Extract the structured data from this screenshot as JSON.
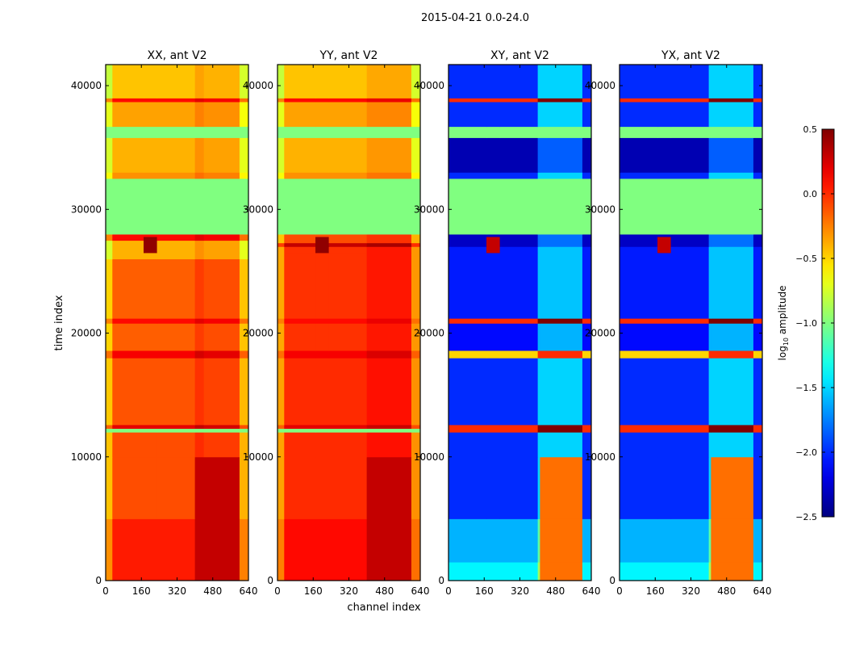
{
  "chart_data": {
    "type": "heatmap",
    "title": "2015-04-21 0.0-24.0",
    "xlabel": "channel index",
    "ylabel": "time index",
    "xlim": [
      0,
      640
    ],
    "ylim": [
      0,
      41700
    ],
    "xticks": [
      "0",
      "160",
      "320",
      "480",
      "640"
    ],
    "xtick_values": [
      0,
      160,
      320,
      480,
      640
    ],
    "yticks": [
      "0",
      "10000",
      "20000",
      "30000",
      "40000"
    ],
    "ytick_values": [
      0,
      10000,
      20000,
      30000,
      40000
    ],
    "colormap": "jet",
    "colorbar": {
      "label_main": "log",
      "label_sub": "10",
      "label_rest": " amplitude",
      "range": [
        -2.5,
        0.5
      ],
      "ticks": [
        "0.5",
        "0.0",
        "−0.5",
        "−1.0",
        "−1.5",
        "−2.0",
        "−2.5"
      ],
      "tick_values": [
        0.5,
        0.0,
        -0.5,
        -1.0,
        -1.5,
        -2.0,
        -2.5
      ]
    },
    "flag_value": -1.0,
    "panels": [
      {
        "title": "XX, ant V2",
        "rows": [
          [
            0,
            5000,
            0.05
          ],
          [
            5000,
            12000,
            -0.1
          ],
          [
            12000,
            12300,
            -1.0
          ],
          [
            12300,
            12600,
            0.2
          ],
          [
            12600,
            18000,
            -0.12
          ],
          [
            18000,
            18600,
            0.15
          ],
          [
            18600,
            20800,
            -0.15
          ],
          [
            20800,
            21200,
            0.1
          ],
          [
            21200,
            26000,
            -0.15
          ],
          [
            26000,
            27500,
            -0.4
          ],
          [
            27500,
            28000,
            0.1
          ],
          [
            28000,
            32500,
            -1.0
          ],
          [
            32500,
            33000,
            -0.3
          ],
          [
            33000,
            35800,
            -0.4
          ],
          [
            35800,
            36700,
            -1.0
          ],
          [
            36700,
            38700,
            -0.35
          ],
          [
            38700,
            39000,
            0.1
          ],
          [
            39000,
            41700,
            -0.45
          ]
        ],
        "column_deltas": [
          [
            0,
            30,
            -0.35
          ],
          [
            30,
            400,
            0
          ],
          [
            400,
            440,
            0.1
          ],
          [
            440,
            600,
            0.05
          ],
          [
            600,
            640,
            -0.3
          ]
        ],
        "overrides": [
          [
            0,
            10000,
            400,
            600,
            0.3
          ],
          [
            26500,
            27800,
            170,
            230,
            0.45
          ]
        ]
      },
      {
        "title": "YY, ant V2",
        "rows": [
          [
            0,
            5000,
            0.1
          ],
          [
            5000,
            12000,
            0.0
          ],
          [
            12000,
            12300,
            -1.0
          ],
          [
            12300,
            12600,
            0.2
          ],
          [
            12600,
            18000,
            0.0
          ],
          [
            18000,
            18600,
            0.15
          ],
          [
            18600,
            20800,
            -0.02
          ],
          [
            20800,
            21200,
            0.1
          ],
          [
            21200,
            27000,
            -0.02
          ],
          [
            27000,
            27300,
            0.3
          ],
          [
            27300,
            28000,
            -0.1
          ],
          [
            28000,
            32500,
            -1.0
          ],
          [
            32500,
            33000,
            -0.3
          ],
          [
            33000,
            35800,
            -0.4
          ],
          [
            35800,
            36700,
            -1.0
          ],
          [
            36700,
            38700,
            -0.35
          ],
          [
            38700,
            39000,
            0.1
          ],
          [
            39000,
            41700,
            -0.45
          ]
        ],
        "column_deltas": [
          [
            0,
            30,
            -0.35
          ],
          [
            30,
            400,
            0
          ],
          [
            400,
            600,
            0.08
          ],
          [
            600,
            640,
            -0.3
          ]
        ],
        "overrides": [
          [
            0,
            10000,
            400,
            600,
            0.3
          ],
          [
            26500,
            27800,
            170,
            230,
            0.45
          ]
        ]
      },
      {
        "title": "XY, ant V2",
        "rows": [
          [
            0,
            1500,
            -1.4
          ],
          [
            1500,
            5000,
            -1.6
          ],
          [
            5000,
            12000,
            -2.0
          ],
          [
            12000,
            12600,
            0.0
          ],
          [
            12600,
            18000,
            -2.0
          ],
          [
            18000,
            18600,
            -0.5
          ],
          [
            18600,
            20800,
            -2.1
          ],
          [
            20800,
            21200,
            0.0
          ],
          [
            21200,
            27000,
            -2.05
          ],
          [
            27000,
            28000,
            -2.3
          ],
          [
            28000,
            32500,
            -1.0
          ],
          [
            32500,
            33000,
            -2.0
          ],
          [
            33000,
            35800,
            -2.35
          ],
          [
            35800,
            36700,
            -1.0
          ],
          [
            36700,
            38700,
            -2.0
          ],
          [
            38700,
            39000,
            0.0
          ],
          [
            39000,
            41700,
            -2.0
          ]
        ],
        "column_deltas": [
          [
            0,
            400,
            0
          ],
          [
            400,
            600,
            0.5
          ],
          [
            600,
            640,
            0
          ]
        ],
        "overrides": [
          [
            0,
            10000,
            410,
            600,
            -0.2
          ],
          [
            26500,
            27800,
            170,
            230,
            0.3
          ]
        ]
      },
      {
        "title": "YX, ant V2",
        "rows": [
          [
            0,
            1500,
            -1.4
          ],
          [
            1500,
            5000,
            -1.6
          ],
          [
            5000,
            12000,
            -2.0
          ],
          [
            12000,
            12600,
            0.0
          ],
          [
            12600,
            18000,
            -2.0
          ],
          [
            18000,
            18600,
            -0.5
          ],
          [
            18600,
            20800,
            -2.1
          ],
          [
            20800,
            21200,
            0.0
          ],
          [
            21200,
            27000,
            -2.05
          ],
          [
            27000,
            28000,
            -2.3
          ],
          [
            28000,
            32500,
            -1.0
          ],
          [
            32500,
            33000,
            -2.0
          ],
          [
            33000,
            35800,
            -2.35
          ],
          [
            35800,
            36700,
            -1.0
          ],
          [
            36700,
            38700,
            -2.0
          ],
          [
            38700,
            39000,
            0.0
          ],
          [
            39000,
            41700,
            -2.0
          ]
        ],
        "column_deltas": [
          [
            0,
            400,
            0
          ],
          [
            400,
            600,
            0.5
          ],
          [
            600,
            640,
            0
          ]
        ],
        "overrides": [
          [
            0,
            10000,
            410,
            600,
            -0.2
          ],
          [
            26500,
            27800,
            170,
            230,
            0.3
          ]
        ]
      }
    ]
  }
}
